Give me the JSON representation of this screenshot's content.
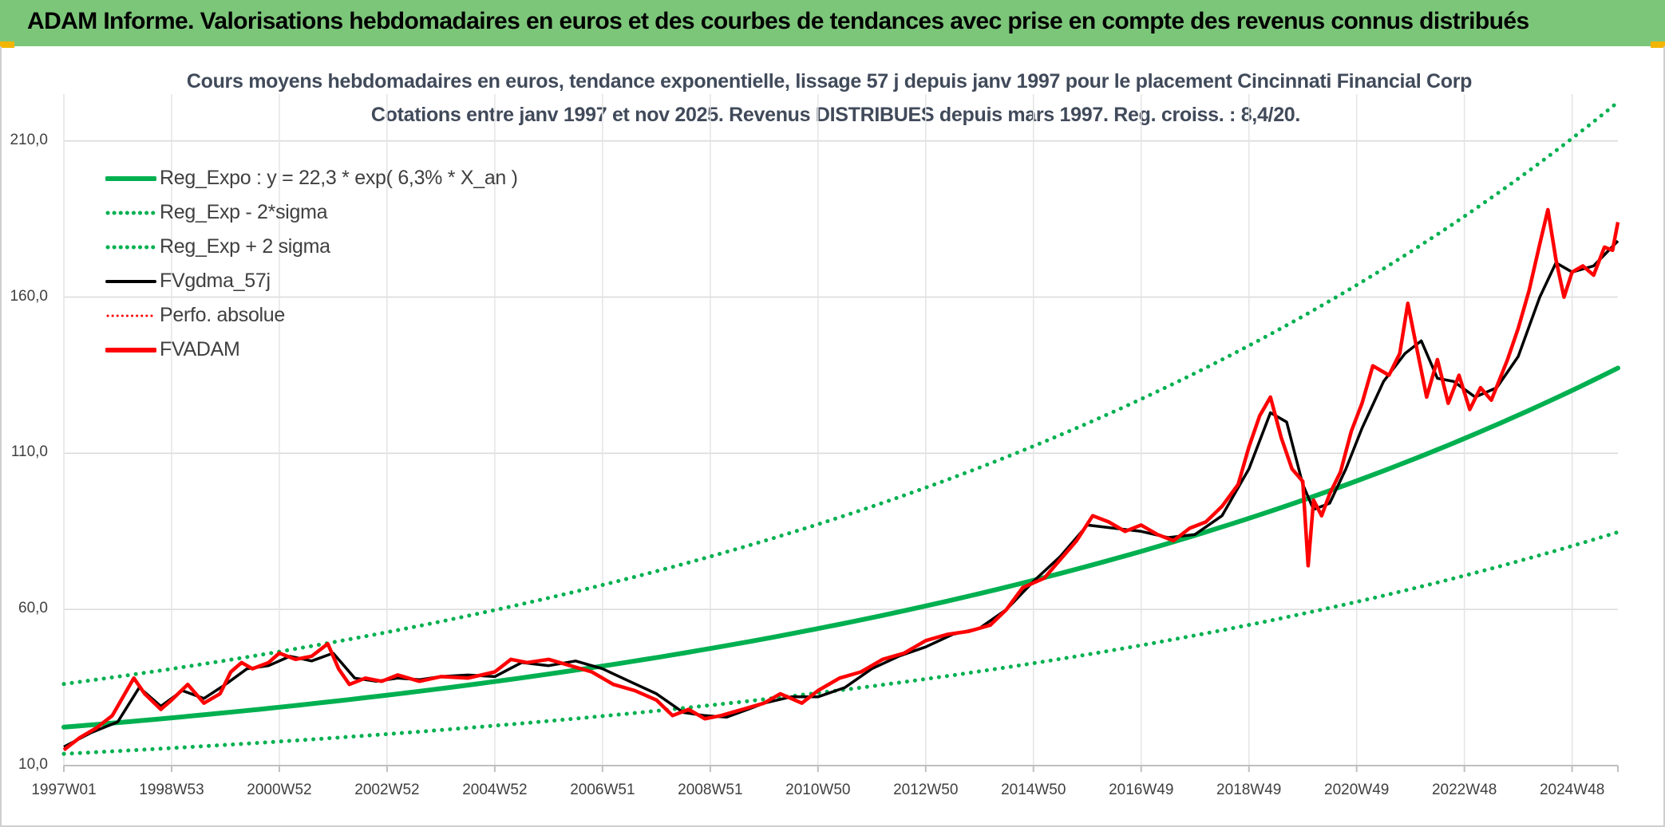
{
  "banner": {
    "title": "ADAM Informe. Valorisations hebdomadaires en euros et des courbes de tendances avec prise en compte des revenus connus distribués"
  },
  "colors": {
    "banner_bg": "#7cc67a",
    "regression": "#00b050",
    "fvgdma": "#000000",
    "fvadam": "#ff0000",
    "perfo": "#ff0000"
  },
  "chart_data": {
    "type": "line",
    "title": "Cours moyens hebdomadaires en euros, tendance exponentielle, lissage 57 j depuis janv 1997 pour le placement Cincinnati Financial Corp",
    "subtitle": "Cotations entre janv 1997 et nov 2025. Revenus DISTRIBUES depuis mars 1997. Reg. croiss. : 8,4/20.",
    "xlabel": "",
    "ylabel": "",
    "ylim": [
      10,
      225
    ],
    "xlim": [
      1997.0,
      2025.85
    ],
    "y_ticks": [
      10,
      60,
      110,
      160,
      210
    ],
    "y_tick_labels": [
      "10,0",
      "60,0",
      "110,0",
      "160,0",
      "210,0"
    ],
    "x_ticks": [
      1997.0,
      1999.0,
      2001.0,
      2003.0,
      2005.0,
      2007.0,
      2009.0,
      2011.0,
      2013.0,
      2015.0,
      2017.0,
      2019.0,
      2021.0,
      2023.0,
      2025.0
    ],
    "x_tick_labels": [
      "1997W01",
      "1998W53",
      "2000W52",
      "2002W52",
      "2004W52",
      "2006W51",
      "2008W51",
      "2010W50",
      "2012W50",
      "2014W50",
      "2016W49",
      "2018W49",
      "2020W49",
      "2022W48",
      "2024W48"
    ],
    "grid": true,
    "legend_position": "top-left",
    "regression": {
      "label": "Reg_Expo : y = 22,3 * exp( 6,3% *  X_an )",
      "a": 22.3,
      "rate": 0.063,
      "sigma_factor": 1.62
    },
    "series": [
      {
        "name": "Reg_Expo : y = 22,3 * exp( 6,3% *  X_an )",
        "style": "solid-thick",
        "color": "#00b050",
        "x": [
          1997.0,
          2001.0,
          2005.0,
          2009.0,
          2013.0,
          2017.0,
          2021.0,
          2025.85
        ],
        "values": [
          22.3,
          28.7,
          37.0,
          47.6,
          61.4,
          79.0,
          101.8,
          138.1
        ]
      },
      {
        "name": "Reg_Exp - 2*sigma",
        "style": "dotted",
        "color": "#00b050",
        "x": [
          1997.0,
          2001.0,
          2005.0,
          2009.0,
          2013.0,
          2017.0,
          2021.0,
          2025.85
        ],
        "values": [
          13.8,
          17.7,
          22.8,
          29.4,
          37.9,
          48.8,
          62.8,
          85.2
        ]
      },
      {
        "name": "Reg_Exp + 2 sigma",
        "style": "dotted",
        "color": "#00b050",
        "x": [
          1997.0,
          2001.0,
          2005.0,
          2009.0,
          2013.0,
          2017.0,
          2021.0,
          2025.85
        ],
        "values": [
          36.1,
          46.5,
          59.9,
          77.1,
          99.4,
          128.0,
          165.0,
          223.7
        ]
      },
      {
        "name": "FVgdma_57j",
        "style": "solid",
        "color": "#000000",
        "x": [
          1997.0,
          1997.5,
          1998.0,
          1998.4,
          1998.8,
          1999.2,
          1999.6,
          2000.0,
          2000.4,
          2000.8,
          2001.2,
          2001.6,
          2002.0,
          2002.4,
          2002.8,
          2003.2,
          2003.6,
          2004.0,
          2004.5,
          2005.0,
          2005.5,
          2006.0,
          2006.5,
          2007.0,
          2007.5,
          2008.0,
          2008.5,
          2008.9,
          2009.3,
          2009.7,
          2010.0,
          2010.5,
          2011.0,
          2011.5,
          2012.0,
          2012.5,
          2013.0,
          2013.5,
          2014.0,
          2014.5,
          2015.0,
          2015.5,
          2016.0,
          2016.5,
          2017.0,
          2017.5,
          2018.0,
          2018.5,
          2019.0,
          2019.4,
          2019.7,
          2020.0,
          2020.2,
          2020.5,
          2020.8,
          2021.1,
          2021.5,
          2021.9,
          2022.2,
          2022.5,
          2022.8,
          2023.2,
          2023.6,
          2024.0,
          2024.4,
          2024.7,
          2025.0,
          2025.4,
          2025.85
        ],
        "values": [
          16.0,
          20.5,
          24.0,
          35.0,
          29.0,
          34.0,
          31.5,
          36.0,
          41.0,
          42.0,
          45.0,
          43.5,
          46.0,
          38.0,
          37.0,
          38.0,
          37.5,
          38.5,
          39.0,
          38.5,
          43.0,
          42.0,
          43.5,
          41.0,
          37.0,
          33.0,
          27.0,
          26.0,
          25.5,
          28.0,
          30.0,
          32.0,
          32.0,
          35.0,
          41.0,
          45.0,
          48.0,
          52.0,
          54.0,
          60.0,
          69.0,
          77.0,
          87.0,
          86.0,
          85.0,
          83.0,
          84.0,
          90.0,
          105.0,
          123.0,
          120.0,
          100.0,
          92.0,
          94.0,
          105.0,
          118.0,
          133.0,
          142.0,
          146.0,
          134.0,
          133.0,
          128.0,
          131.0,
          141.0,
          160.0,
          171.0,
          168.0,
          170.0,
          178.0
        ]
      },
      {
        "name": "Perfo. absolue",
        "style": "dotted",
        "color": "#ff0000",
        "x": [],
        "values": []
      },
      {
        "name": "FVADAM",
        "style": "solid-thick",
        "color": "#ff0000",
        "x": [
          1997.0,
          1997.3,
          1997.6,
          1997.9,
          1998.1,
          1998.3,
          1998.5,
          1998.8,
          1999.0,
          1999.3,
          1999.6,
          1999.9,
          2000.1,
          2000.3,
          2000.5,
          2000.8,
          2001.0,
          2001.3,
          2001.6,
          2001.9,
          2002.1,
          2002.3,
          2002.6,
          2002.9,
          2003.2,
          2003.6,
          2004.0,
          2004.5,
          2005.0,
          2005.3,
          2005.6,
          2006.0,
          2006.4,
          2006.8,
          2007.2,
          2007.6,
          2008.0,
          2008.3,
          2008.6,
          2008.9,
          2009.2,
          2009.6,
          2010.0,
          2010.3,
          2010.7,
          2011.0,
          2011.4,
          2011.8,
          2012.2,
          2012.6,
          2013.0,
          2013.4,
          2013.8,
          2014.2,
          2014.5,
          2014.8,
          2015.2,
          2015.5,
          2015.8,
          2016.1,
          2016.4,
          2016.7,
          2017.0,
          2017.3,
          2017.6,
          2017.9,
          2018.2,
          2018.5,
          2018.8,
          2019.0,
          2019.2,
          2019.4,
          2019.6,
          2019.8,
          2020.0,
          2020.1,
          2020.2,
          2020.35,
          2020.5,
          2020.7,
          2020.9,
          2021.1,
          2021.3,
          2021.6,
          2021.8,
          2021.95,
          2022.1,
          2022.3,
          2022.5,
          2022.7,
          2022.9,
          2023.1,
          2023.3,
          2023.5,
          2023.8,
          2024.0,
          2024.2,
          2024.4,
          2024.55,
          2024.7,
          2024.85,
          2025.0,
          2025.2,
          2025.4,
          2025.6,
          2025.75,
          2025.85
        ],
        "values": [
          15.0,
          19.0,
          22.0,
          26.0,
          32.0,
          38.0,
          33.0,
          28.0,
          31.0,
          36.0,
          30.0,
          33.0,
          40.0,
          43.0,
          41.0,
          43.0,
          46.0,
          44.0,
          45.0,
          49.0,
          41.0,
          36.0,
          38.0,
          37.0,
          39.0,
          37.0,
          38.5,
          38.0,
          40.0,
          44.0,
          43.0,
          44.0,
          42.0,
          40.0,
          36.0,
          34.0,
          31.0,
          26.0,
          28.0,
          25.0,
          26.0,
          28.0,
          30.0,
          33.0,
          30.0,
          34.0,
          38.0,
          40.0,
          44.0,
          46.0,
          50.0,
          52.0,
          53.0,
          55.0,
          60.0,
          67.0,
          70.0,
          76.0,
          82.0,
          90.0,
          88.0,
          85.0,
          87.0,
          84.0,
          82.0,
          86.0,
          88.0,
          93.0,
          100.0,
          112.0,
          122.0,
          128.0,
          115.0,
          105.0,
          101.0,
          74.0,
          95.0,
          90.0,
          97.0,
          104.0,
          117.0,
          126.0,
          138.0,
          135.0,
          142.0,
          158.0,
          145.0,
          128.0,
          140.0,
          126.0,
          135.0,
          124.0,
          131.0,
          127.0,
          140.0,
          150.0,
          162.0,
          177.0,
          188.0,
          172.0,
          160.0,
          168.0,
          170.0,
          167.0,
          176.0,
          175.0,
          184.0
        ]
      }
    ]
  }
}
